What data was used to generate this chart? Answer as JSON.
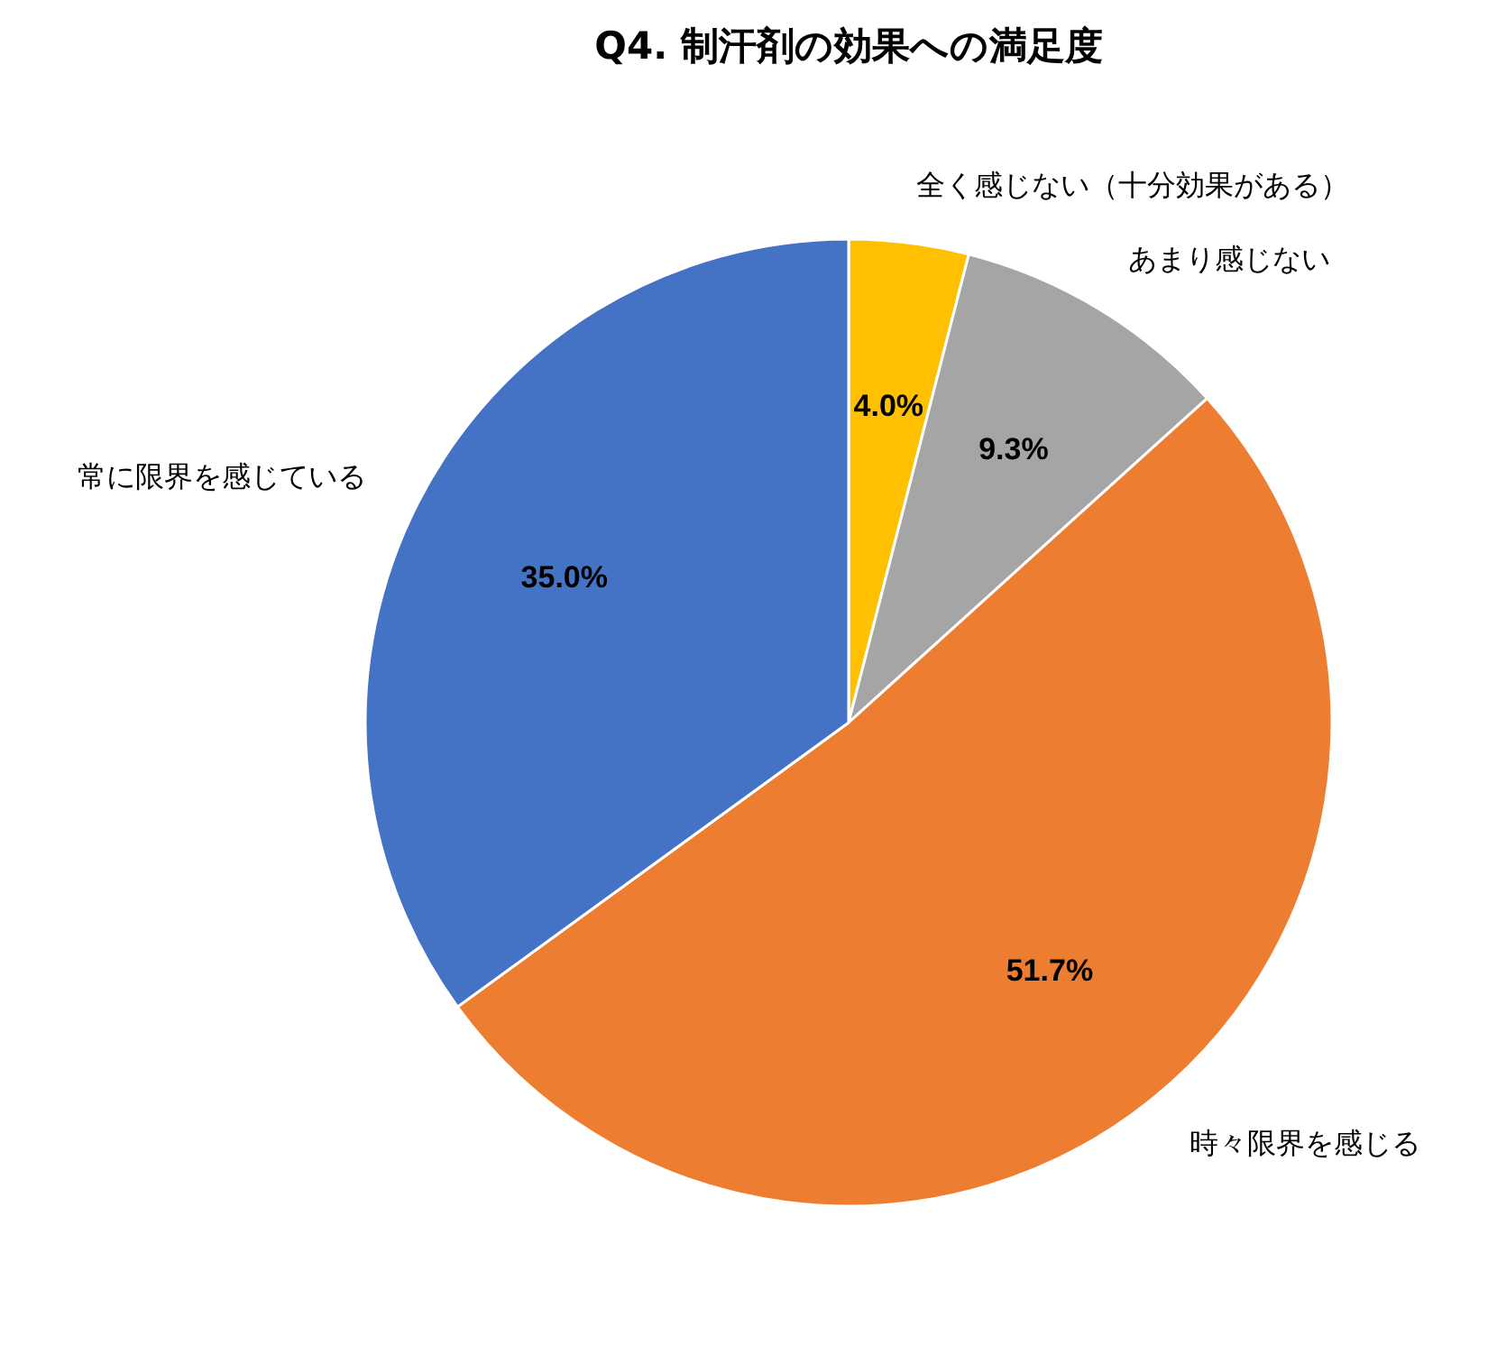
{
  "chart_data": {
    "type": "pie",
    "title": "Q4. 制汗剤の効果への満足度",
    "categories": [
      "全く感じない（十分効果がある）",
      "あまり感じない",
      "時々限界を感じる",
      "常に限界を感じている"
    ],
    "values": [
      4.0,
      9.3,
      51.7,
      35.0
    ],
    "colors": [
      "#ffc000",
      "#a5a5a5",
      "#ed7d31",
      "#4472c4"
    ],
    "value_labels": [
      "4.0%",
      "9.3%",
      "51.7%",
      "35.0%"
    ]
  }
}
